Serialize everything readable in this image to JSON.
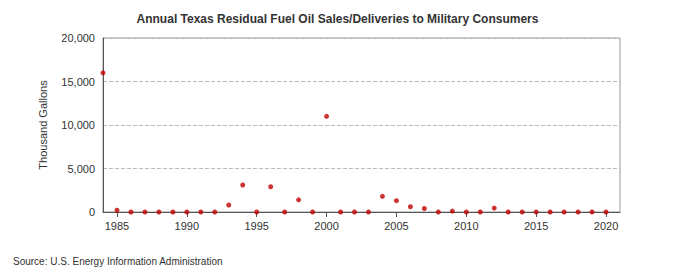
{
  "chart_data": {
    "type": "scatter",
    "title": "Annual Texas Residual Fuel Oil Sales/Deliveries to Military Consumers",
    "y_label": "Thousand Gallons",
    "source": "Source: U.S. Energy Information Administration",
    "x": [
      1984,
      1985,
      1986,
      1987,
      1988,
      1989,
      1990,
      1991,
      1992,
      1993,
      1994,
      1995,
      1996,
      1997,
      1998,
      1999,
      2000,
      2001,
      2002,
      2003,
      2004,
      2005,
      2006,
      2007,
      2008,
      2009,
      2010,
      2011,
      2012,
      2013,
      2014,
      2015,
      2016,
      2017,
      2018,
      2019,
      2020
    ],
    "values": [
      16000,
      200,
      0,
      0,
      0,
      0,
      0,
      0,
      0,
      800,
      3100,
      0,
      2900,
      0,
      1400,
      0,
      11000,
      0,
      0,
      0,
      1800,
      1300,
      600,
      400,
      0,
      100,
      0,
      0,
      450,
      0,
      0,
      0,
      0,
      0,
      0,
      0,
      0
    ],
    "color": "#c00000",
    "marker": "circle",
    "xlim": [
      1984,
      2021
    ],
    "xticks": [
      1985,
      1990,
      1995,
      2000,
      2005,
      2010,
      2015,
      2020
    ],
    "ylim": [
      0,
      20000
    ],
    "yticks": [
      0,
      {
        "value": 5000,
        "label": "5,000"
      },
      {
        "value": 10000,
        "label": "10,000"
      },
      {
        "value": 15000,
        "label": "15,000"
      },
      {
        "value": 20000,
        "label": "20,000"
      }
    ],
    "grid": true
  }
}
